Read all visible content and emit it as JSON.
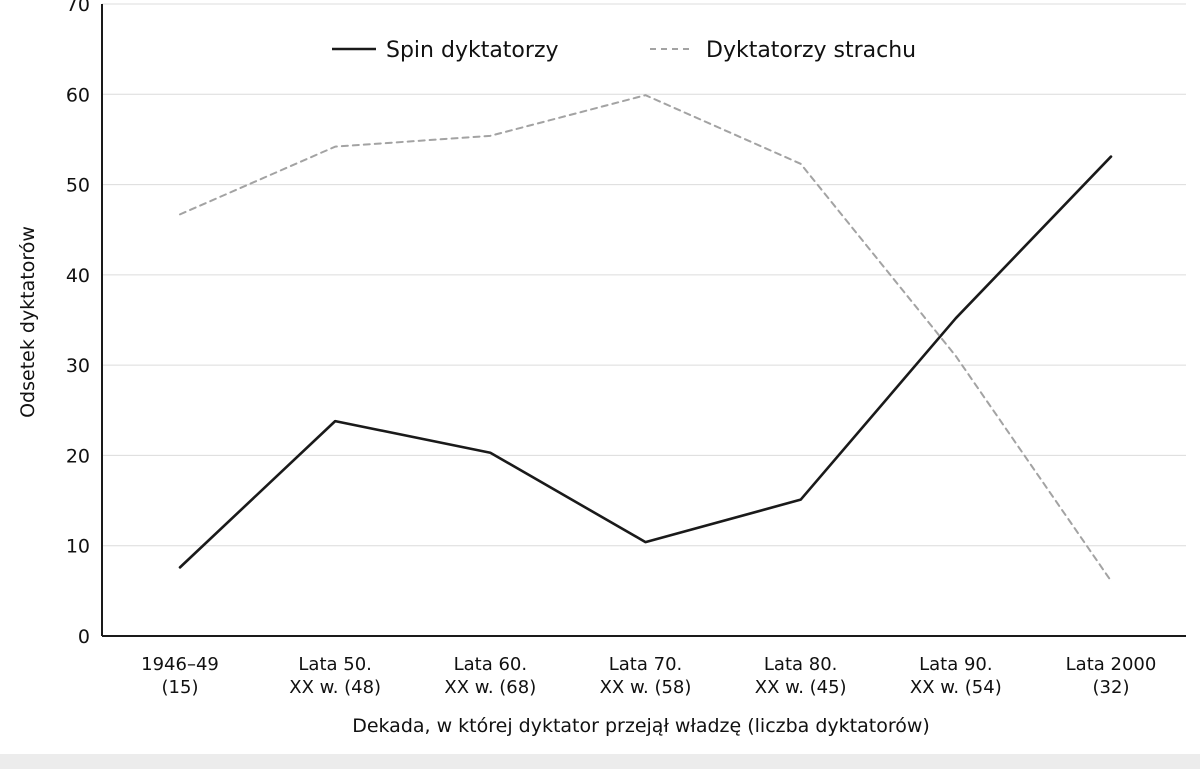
{
  "chart_data": {
    "type": "line",
    "title": "",
    "xlabel": "Dekada, w której dyktator przejął władzę (liczba dyktatorów)",
    "ylabel": "Odsetek dyktatorów",
    "ylim": [
      0,
      70
    ],
    "yticks": [
      0,
      10,
      20,
      30,
      40,
      50,
      60,
      70
    ],
    "grid": "horizontal",
    "legend_position": "top-center",
    "categories": [
      [
        "1946–49",
        "(15)"
      ],
      [
        "Lata 50.",
        "XX w.  (48)"
      ],
      [
        "Lata 60.",
        "XX w.  (68)"
      ],
      [
        "Lata 70.",
        "XX w.  (58)"
      ],
      [
        "Lata 80.",
        "XX w.  (45)"
      ],
      [
        "Lata 90.",
        "XX w.  (54)"
      ],
      [
        "Lata 2000",
        "(32)"
      ]
    ],
    "series": [
      {
        "name": "Spin dyktatorzy",
        "values": [
          7.6,
          23.8,
          20.3,
          10.4,
          15.1,
          35.2,
          53.1
        ],
        "color": "#1a1a1a",
        "style": "solid"
      },
      {
        "name": "Dyktatorzy strachu",
        "values": [
          46.7,
          54.2,
          55.4,
          59.9,
          52.3,
          31.0,
          6.1
        ],
        "color": "#a3a3a3",
        "style": "dashed"
      }
    ]
  }
}
